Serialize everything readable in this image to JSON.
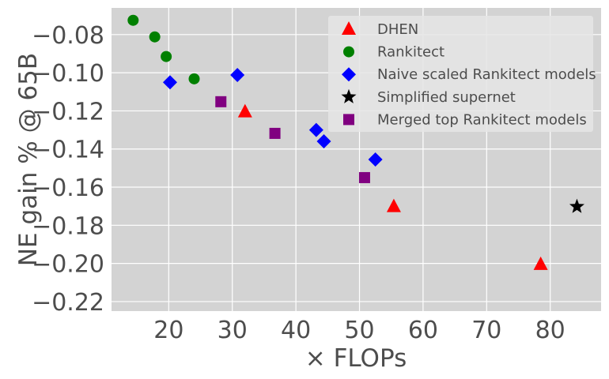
{
  "chart_data": {
    "type": "scatter",
    "title": "",
    "xlabel": "× FLOPs",
    "ylabel": "NE gain % @ 65B",
    "xlim": [
      11,
      88
    ],
    "ylim": [
      -0.225,
      -0.066
    ],
    "xticks": [
      20,
      30,
      40,
      50,
      60,
      70,
      80
    ],
    "yticks": [
      -0.08,
      -0.1,
      -0.12,
      -0.14,
      -0.16,
      -0.18,
      -0.2,
      -0.22
    ],
    "xtick_labels": [
      "20",
      "30",
      "40",
      "50",
      "60",
      "70",
      "80"
    ],
    "ytick_labels": [
      "−0.08",
      "−0.10",
      "−0.12",
      "−0.14",
      "−0.16",
      "−0.18",
      "−0.20",
      "−0.22"
    ],
    "grid": true,
    "legend_position": "top-right",
    "series": [
      {
        "name": "DHEN",
        "marker": "triangle",
        "color": "#ff0000",
        "points": [
          [
            32.0,
            -0.1205
          ],
          [
            55.4,
            -0.1702
          ],
          [
            78.5,
            -0.2005
          ]
        ]
      },
      {
        "name": "Rankitect",
        "marker": "circle",
        "color": "#008000",
        "points": [
          [
            14.4,
            -0.0725
          ],
          [
            17.8,
            -0.0812
          ],
          [
            19.6,
            -0.0915
          ],
          [
            24.0,
            -0.1032
          ]
        ]
      },
      {
        "name": "Naive scaled Rankitect models",
        "marker": "diamond",
        "color": "#0000ff",
        "points": [
          [
            20.2,
            -0.105
          ],
          [
            30.8,
            -0.1012
          ],
          [
            43.2,
            -0.13
          ],
          [
            44.4,
            -0.136
          ],
          [
            52.5,
            -0.1455
          ]
        ]
      },
      {
        "name": "Simplified supernet",
        "marker": "star",
        "color": "#000000",
        "points": [
          [
            84.2,
            -0.1702
          ]
        ]
      },
      {
        "name": "Merged top Rankitect models",
        "marker": "square",
        "color": "#800080",
        "points": [
          [
            28.2,
            -0.1152
          ],
          [
            36.7,
            -0.1318
          ],
          [
            50.8,
            -0.155
          ]
        ]
      }
    ]
  }
}
